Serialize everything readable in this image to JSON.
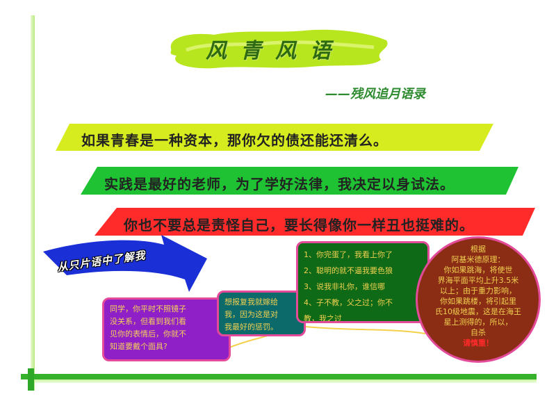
{
  "title": "风青风语",
  "subtitle": "——残风追月语录",
  "banners": [
    {
      "text": "如果青春是一种资本，那你欠的债还能还清么。",
      "color": "#d6ec1e"
    },
    {
      "text": "实践是最好的老师，为了学好法律，我决定以身试法。",
      "color": "#1ec232"
    },
    {
      "text": "你也不要总是责怪自己，要长得像你一样丑也挺难的。",
      "color": "#ff2a2a"
    }
  ],
  "arrow_label": "从只片语中了解我",
  "notes": {
    "purple": [
      "同学，你平时不照镜子",
      "没关系，但看到我们看",
      "见你的表情后，你就不",
      "知道要戴个面具?"
    ],
    "teal": [
      "想报复我就嫁给",
      "我，因为这是对",
      "我最好的惩罚。"
    ],
    "green": [
      "1、你完蛋了，我看上你了",
      "2、聪明的就不逼我要色狼",
      "3、说我非礼你，谁信哪",
      "4、子不教，父之过；你不",
      "教，我之过"
    ]
  },
  "circle": {
    "lines": [
      "根据",
      "阿基米德原理：",
      "你如果跳海，将使世",
      "界海平面平均上升3.5米",
      "以上；由于重力影响，",
      "你如果跳楼，将引起里",
      "氏10级地震，这是在海王",
      "星上测得的，所以，",
      "自杀"
    ],
    "warning": "请慎重！"
  },
  "colors": {
    "frame_green": "#35b12c",
    "title_blob": "#b8e61e",
    "arrow_blue": "#1a2fd6"
  }
}
